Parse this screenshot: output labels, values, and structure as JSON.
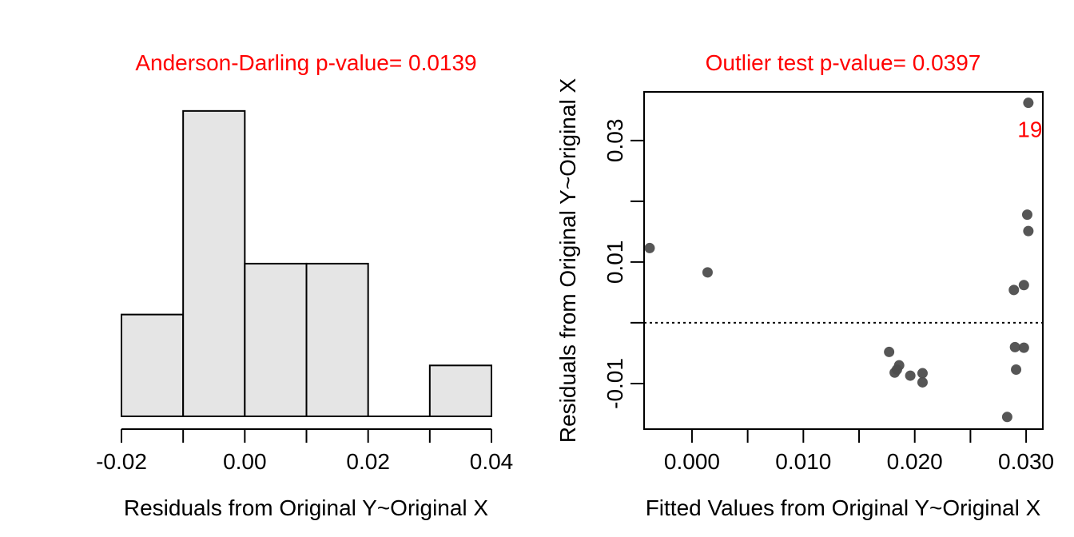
{
  "colors": {
    "title": "#ff0000",
    "bar_fill": "#e5e5e5",
    "point": "#4d4d4d",
    "annotation": "#ff0000"
  },
  "chart_data": [
    {
      "type": "bar",
      "subtype": "histogram",
      "title": "Anderson-Darling p-value= 0.0139",
      "xlabel": "Residuals from Original Y~Original X",
      "ylabel": "",
      "bins": [
        {
          "from": -0.02,
          "to": -0.01,
          "count": 2
        },
        {
          "from": -0.01,
          "to": 0.0,
          "count": 6
        },
        {
          "from": 0.0,
          "to": 0.01,
          "count": 3
        },
        {
          "from": 0.01,
          "to": 0.02,
          "count": 3
        },
        {
          "from": 0.02,
          "to": 0.03,
          "count": 0
        },
        {
          "from": 0.03,
          "to": 0.04,
          "count": 1
        }
      ],
      "xlim": [
        -0.02,
        0.04
      ],
      "xticks": [
        -0.02,
        -0.01,
        0.0,
        0.01,
        0.02,
        0.03,
        0.04
      ],
      "xtick_labels": [
        "-0.02",
        "0.00",
        "0.02",
        "0.04"
      ],
      "ylim": [
        0,
        6.5
      ],
      "grid": false
    },
    {
      "type": "scatter",
      "title": "Outlier test p-value= 0.0397",
      "xlabel": "Fitted Values from Original Y~Original X",
      "ylabel": "Residuals from Original Y~Original X",
      "xlim": [
        -0.0043,
        0.0315
      ],
      "ylim": [
        -0.0175,
        0.038
      ],
      "xticks": [
        0.0,
        0.005,
        0.01,
        0.015,
        0.02,
        0.025,
        0.03
      ],
      "xtick_labels": [
        "0.000",
        "0.010",
        "0.020",
        "0.030"
      ],
      "yticks": [
        -0.01,
        0.0,
        0.01,
        0.02,
        0.03
      ],
      "ytick_labels": [
        "-0.01",
        "0.01",
        "0.03"
      ],
      "reference_line": {
        "y": 0,
        "style": "dotted"
      },
      "points": [
        {
          "x": -0.0038,
          "y": 0.0123
        },
        {
          "x": 0.0014,
          "y": 0.0083
        },
        {
          "x": 0.0177,
          "y": -0.0048
        },
        {
          "x": 0.0182,
          "y": -0.0082
        },
        {
          "x": 0.0184,
          "y": -0.0077
        },
        {
          "x": 0.0186,
          "y": -0.007
        },
        {
          "x": 0.0196,
          "y": -0.0087
        },
        {
          "x": 0.0207,
          "y": -0.0083
        },
        {
          "x": 0.0207,
          "y": -0.0098
        },
        {
          "x": 0.0283,
          "y": -0.0155
        },
        {
          "x": 0.0289,
          "y": 0.0054
        },
        {
          "x": 0.029,
          "y": -0.004
        },
        {
          "x": 0.0291,
          "y": -0.0077
        },
        {
          "x": 0.0298,
          "y": 0.0062
        },
        {
          "x": 0.0298,
          "y": -0.0041
        },
        {
          "x": 0.0301,
          "y": 0.0178
        },
        {
          "x": 0.0302,
          "y": 0.0151
        },
        {
          "x": 0.0302,
          "y": 0.0362
        }
      ],
      "annotations": [
        {
          "text": "19",
          "x": 0.0302,
          "y": 0.0362
        }
      ]
    }
  ]
}
